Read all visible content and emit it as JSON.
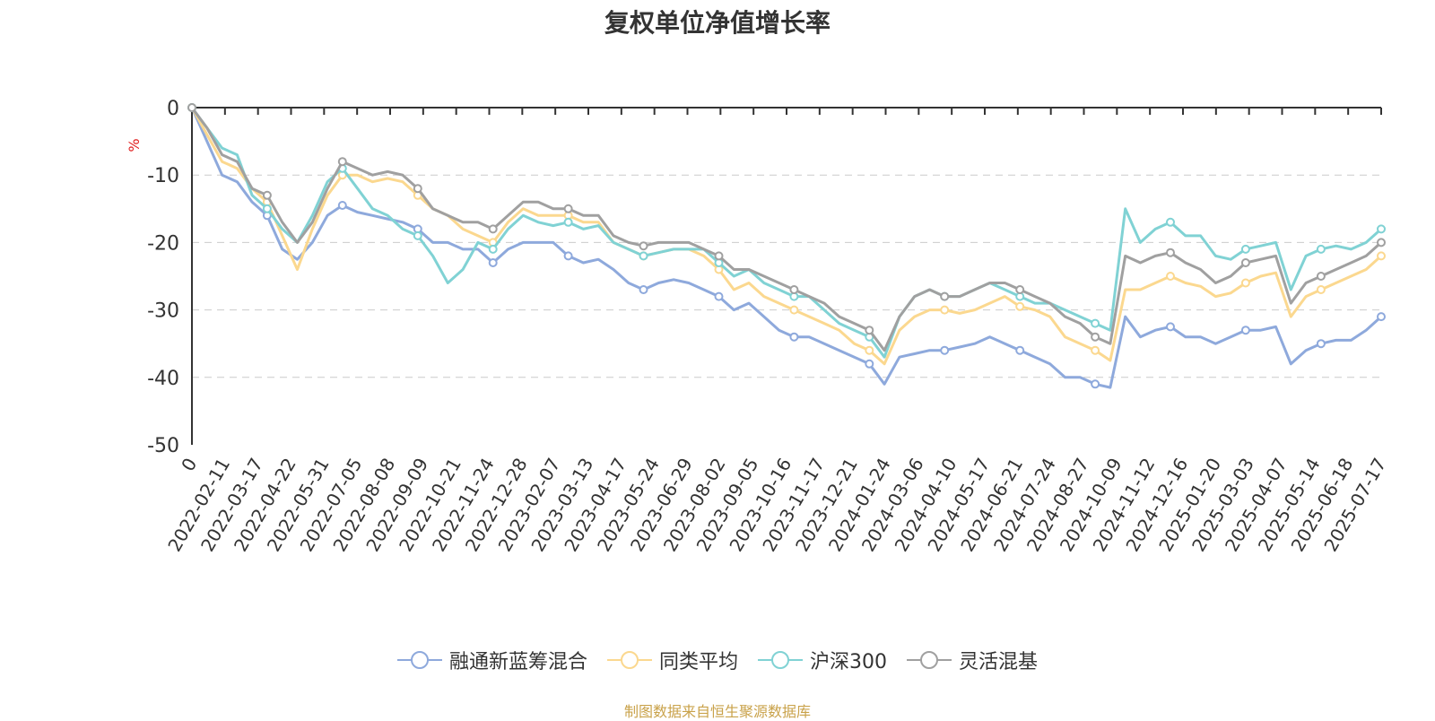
{
  "chart_data": {
    "type": "line",
    "title": "复权单位净值增长率",
    "ylabel": "%",
    "ylim": [
      -50,
      0
    ],
    "yticks": [
      0,
      -10,
      -20,
      -30,
      -40,
      -50
    ],
    "grid": true,
    "legend_position": "bottom",
    "x_tick_labels": [
      "0",
      "2022-02-11",
      "2022-03-17",
      "2022-04-22",
      "2022-05-31",
      "2022-07-05",
      "2022-08-08",
      "2022-09-09",
      "2022-10-21",
      "2022-11-24",
      "2022-12-28",
      "2023-02-07",
      "2023-03-13",
      "2023-04-17",
      "2023-05-24",
      "2023-06-29",
      "2023-08-02",
      "2023-09-05",
      "2023-10-16",
      "2023-11-17",
      "2023-12-21",
      "2024-01-24",
      "2024-03-06",
      "2024-04-10",
      "2024-05-17",
      "2024-06-21",
      "2024-07-24",
      "2024-08-27",
      "2024-10-09",
      "2024-11-12",
      "2024-12-16",
      "2025-01-20",
      "2025-03-03",
      "2025-04-07",
      "2025-05-14",
      "2025-06-18",
      "2025-07-17"
    ],
    "series": [
      {
        "name": "融通新蓝筹混合",
        "color": "#8ea9dc",
        "values": [
          0,
          -5,
          -10,
          -11,
          -14,
          -16,
          -21,
          -22.5,
          -20,
          -16,
          -14.5,
          -15.5,
          -16,
          -16.5,
          -17,
          -18,
          -20,
          -20,
          -21,
          -21,
          -23,
          -21,
          -20,
          -20,
          -20,
          -22,
          -23,
          -22.5,
          -24,
          -26,
          -27,
          -26,
          -25.5,
          -26,
          -27,
          -28,
          -30,
          -29,
          -31,
          -33,
          -34,
          -34,
          -35,
          -36,
          -37,
          -38,
          -41,
          -37,
          -36.5,
          -36,
          -36,
          -35.5,
          -35,
          -34,
          -35,
          -36,
          -37,
          -38,
          -40,
          -40,
          -41,
          -41.5,
          -31,
          -34,
          -33,
          -32.5,
          -34,
          -34,
          -35,
          -34,
          -33,
          -33,
          -32.5,
          -38,
          -36,
          -35,
          -34.5,
          -34.5,
          -33,
          -31
        ]
      },
      {
        "name": "同类平均",
        "color": "#fbd88f",
        "values": [
          0,
          -4,
          -8,
          -9,
          -12,
          -14,
          -19,
          -24,
          -18,
          -13,
          -10,
          -10,
          -11,
          -10.5,
          -11,
          -13,
          -15,
          -16,
          -18,
          -19,
          -20,
          -17,
          -15,
          -16,
          -16,
          -16,
          -17,
          -17,
          -20,
          -21,
          -22,
          -21.5,
          -21,
          -21,
          -22,
          -24,
          -27,
          -26,
          -28,
          -29,
          -30,
          -31,
          -32,
          -33,
          -35,
          -36,
          -38,
          -33,
          -31,
          -30,
          -30,
          -30.5,
          -30,
          -29,
          -28,
          -29.5,
          -30,
          -31,
          -34,
          -35,
          -36,
          -37.5,
          -27,
          -27,
          -26,
          -25,
          -26,
          -26.5,
          -28,
          -27.5,
          -26,
          -25,
          -24.5,
          -31,
          -28,
          -27,
          -26,
          -25,
          -24,
          -22
        ]
      },
      {
        "name": "沪深300",
        "color": "#80d2d4",
        "values": [
          0,
          -3,
          -6,
          -7,
          -13,
          -15,
          -18,
          -20,
          -16,
          -11,
          -9,
          -12,
          -15,
          -16,
          -18,
          -19,
          -22,
          -26,
          -24,
          -20,
          -21,
          -18,
          -16,
          -17,
          -17.5,
          -17,
          -18,
          -17.5,
          -20,
          -21,
          -22,
          -21.5,
          -21,
          -21,
          -21,
          -23,
          -25,
          -24,
          -26,
          -27,
          -28,
          -28,
          -30,
          -32,
          -33,
          -34,
          -37,
          -31,
          -28,
          -27,
          -28,
          -28,
          -27,
          -26,
          -27,
          -28,
          -29,
          -29,
          -30,
          -31,
          -32,
          -33,
          -15,
          -20,
          -18,
          -17,
          -19,
          -19,
          -22,
          -22.5,
          -21,
          -20.5,
          -20,
          -27,
          -22,
          -21,
          -20.5,
          -21,
          -20,
          -18
        ]
      },
      {
        "name": "灵活混基",
        "color": "#a0a0a0",
        "values": [
          0,
          -3,
          -7,
          -8,
          -12,
          -13,
          -17,
          -20,
          -17,
          -12,
          -8,
          -9,
          -10,
          -9.5,
          -10,
          -12,
          -15,
          -16,
          -17,
          -17,
          -18,
          -16,
          -14,
          -14,
          -15,
          -15,
          -16,
          -16,
          -19,
          -20,
          -20.5,
          -20,
          -20,
          -20,
          -21,
          -22,
          -24,
          -24,
          -25,
          -26,
          -27,
          -28,
          -29,
          -31,
          -32,
          -33,
          -36,
          -31,
          -28,
          -27,
          -28,
          -28,
          -27,
          -26,
          -26,
          -27,
          -28,
          -29,
          -31,
          -32,
          -34,
          -35,
          -22,
          -23,
          -22,
          -21.5,
          -23,
          -24,
          -26,
          -25,
          -23,
          -22.5,
          -22,
          -29,
          -26,
          -25,
          -24,
          -23,
          -22,
          -20
        ]
      }
    ]
  },
  "legend": {
    "items": [
      "融通新蓝筹混合",
      "同类平均",
      "沪深300",
      "灵活混基"
    ]
  },
  "source_note": "制图数据来自恒生聚源数据库"
}
